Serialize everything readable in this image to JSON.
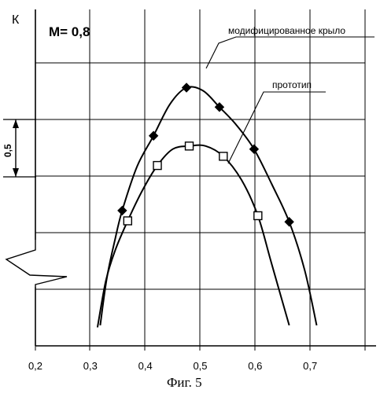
{
  "chart_data": {
    "type": "line",
    "title": "",
    "ylabel": "К",
    "xlabel": "",
    "mach_label": "М= 0,8",
    "caption": "Фиг. 5",
    "y_scale_label": "0,5",
    "x_tick_labels": [
      "0,2",
      "0,3",
      "0,4",
      "0,5",
      "0,6",
      "0,7"
    ],
    "x_ticks": [
      0.2,
      0.3,
      0.4,
      0.5,
      0.6,
      0.7
    ],
    "xlim": [
      0.2,
      0.8
    ],
    "grid": true,
    "y_relative": true,
    "ylim": [
      0.0,
      2.8
    ],
    "annotations": [
      {
        "text": "модифицированное крыло",
        "series": 0
      },
      {
        "text": "прототип",
        "series": 1
      }
    ],
    "series": [
      {
        "name": "модифицированное крыло",
        "marker": "filled-diamond",
        "x": [
          0.358,
          0.415,
          0.475,
          0.535,
          0.598,
          0.662
        ],
        "y": [
          1.32,
          2.05,
          2.52,
          2.33,
          1.92,
          1.21
        ],
        "curve": [
          [
            0.318,
            0.2
          ],
          [
            0.33,
            0.66
          ],
          [
            0.345,
            1.04
          ],
          [
            0.358,
            1.32
          ],
          [
            0.385,
            1.75
          ],
          [
            0.415,
            2.05
          ],
          [
            0.445,
            2.36
          ],
          [
            0.475,
            2.52
          ],
          [
            0.505,
            2.49
          ],
          [
            0.535,
            2.33
          ],
          [
            0.565,
            2.16
          ],
          [
            0.598,
            1.92
          ],
          [
            0.63,
            1.58
          ],
          [
            0.662,
            1.21
          ],
          [
            0.69,
            0.74
          ],
          [
            0.712,
            0.2
          ]
        ]
      },
      {
        "name": "прототип",
        "marker": "open-square",
        "x": [
          0.368,
          0.422,
          0.48,
          0.542,
          0.605
        ],
        "y": [
          1.22,
          1.76,
          1.95,
          1.85,
          1.27
        ],
        "curve": [
          [
            0.313,
            0.18
          ],
          [
            0.328,
            0.63
          ],
          [
            0.345,
            0.93
          ],
          [
            0.368,
            1.22
          ],
          [
            0.395,
            1.52
          ],
          [
            0.422,
            1.76
          ],
          [
            0.45,
            1.92
          ],
          [
            0.48,
            1.95
          ],
          [
            0.51,
            1.95
          ],
          [
            0.542,
            1.85
          ],
          [
            0.575,
            1.62
          ],
          [
            0.605,
            1.27
          ],
          [
            0.63,
            0.8
          ],
          [
            0.662,
            0.2
          ]
        ]
      }
    ]
  }
}
